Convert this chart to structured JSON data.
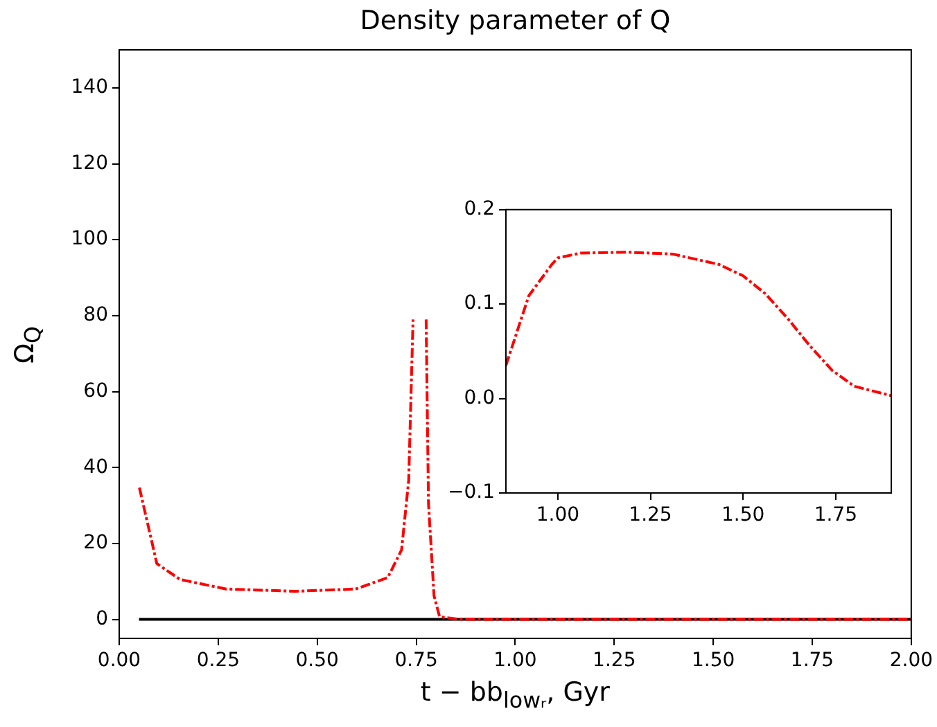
{
  "chart_data": [
    {
      "type": "line",
      "title": "Density parameter of Q",
      "xlabel": "t − bb$_{lowᵣ}$, Gyr",
      "ylabel": "Ω$_{Q}$",
      "xlim": [
        0,
        2
      ],
      "ylim": [
        -5,
        150
      ],
      "xticks": [
        {
          "value": 0,
          "label": "0.00"
        },
        {
          "value": 0.25,
          "label": "0.25"
        },
        {
          "value": 0.5,
          "label": "0.50"
        },
        {
          "value": 0.75,
          "label": "0.75"
        },
        {
          "value": 1,
          "label": "1.00"
        },
        {
          "value": 1.25,
          "label": "1.25"
        },
        {
          "value": 1.5,
          "label": "1.50"
        },
        {
          "value": 1.75,
          "label": "1.75"
        },
        {
          "value": 2,
          "label": "2.00"
        }
      ],
      "yticks": [
        0,
        20,
        40,
        60,
        80,
        100,
        120,
        140
      ],
      "grid": false,
      "legend": false,
      "marker": "none",
      "series": [
        {
          "color": "#ff0000",
          "line_style": "dashdot",
          "x": [
            0.051,
            0.095,
            0.154,
            0.27,
            0.445,
            0.597,
            0.678,
            0.713,
            0.731,
            0.742,
            0.748,
            0.76,
            0.772,
            0.775,
            0.781,
            0.795,
            0.809,
            0.86,
            1.0,
            1.2,
            1.4,
            1.6,
            1.8,
            1.9,
            2.0
          ],
          "values": [
            34.7,
            14.7,
            10.5,
            8.0,
            7.4,
            8.0,
            11,
            18.3,
            36.6,
            79,
            null,
            null,
            null,
            79,
            30.6,
            6.2,
            0.7,
            0,
            0,
            0,
            0,
            0,
            0,
            0,
            0
          ]
        },
        {
          "color": "#000000",
          "line_style": "solid",
          "x": [
            0.05,
            2.0
          ],
          "values": [
            0,
            0
          ]
        }
      ]
    },
    {
      "type": "line",
      "xlim": [
        0.86,
        1.9
      ],
      "ylim": [
        -0.1,
        0.2
      ],
      "xticks": [
        {
          "value": 1,
          "label": "1.00"
        },
        {
          "value": 1.25,
          "label": "1.25"
        },
        {
          "value": 1.5,
          "label": "1.50"
        },
        {
          "value": 1.75,
          "label": "1.75"
        }
      ],
      "yticks": [
        {
          "value": -0.1,
          "label": "−0.1"
        },
        {
          "value": 0,
          "label": "0.0"
        },
        0.1,
        0.2
      ],
      "grid": false,
      "legend": false,
      "marker": "none",
      "series": [
        {
          "color": "#ff0000",
          "line_style": "dashdot",
          "x": [
            0.86,
            0.922,
            0.984,
            1.0,
            1.062,
            1.186,
            1.31,
            1.435,
            1.5,
            1.56,
            1.62,
            1.68,
            1.74,
            1.8,
            1.9
          ],
          "values": [
            0.035,
            0.109,
            0.142,
            0.149,
            0.154,
            0.155,
            0.153,
            0.142,
            0.13,
            0.111,
            0.085,
            0.056,
            0.03,
            0.013,
            0.003
          ]
        }
      ]
    }
  ]
}
